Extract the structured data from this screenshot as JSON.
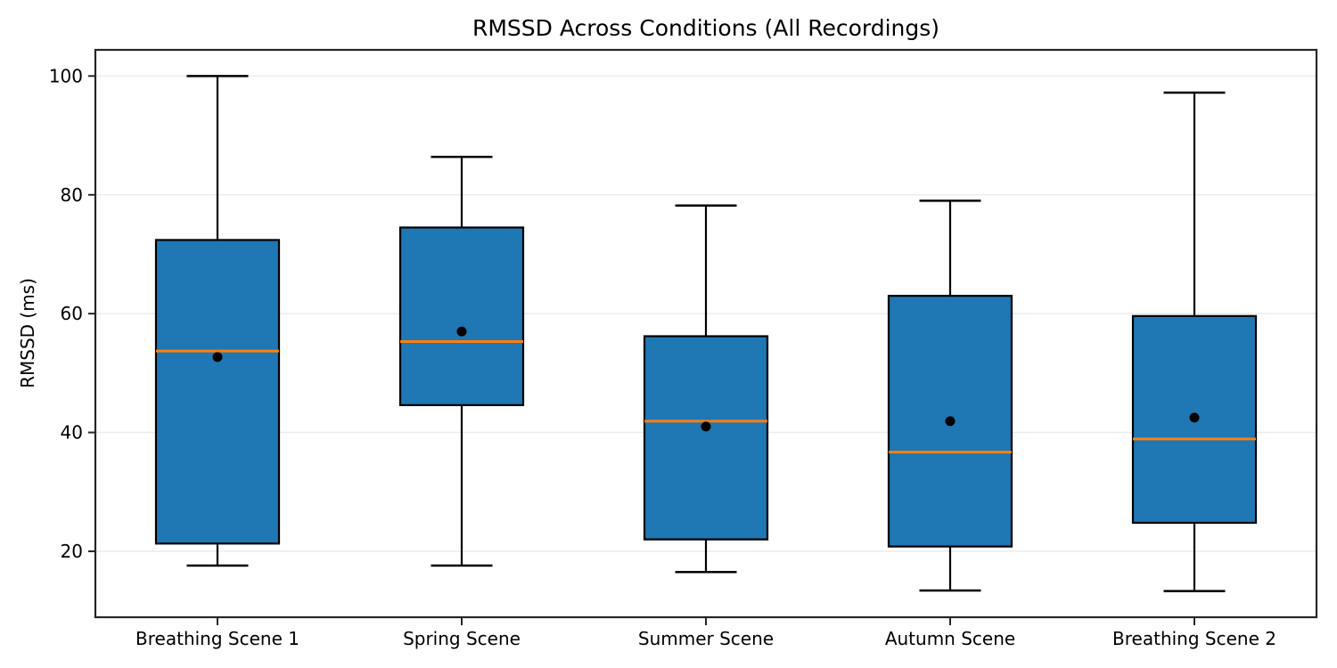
{
  "figure": {
    "title": "RMSSD Across Conditions (All Recordings)",
    "ylabel": "RMSSD (ms)"
  },
  "chart_data": {
    "type": "box",
    "title": "RMSSD Across Conditions (All Recordings)",
    "xlabel": "",
    "ylabel": "RMSSD (ms)",
    "categories": [
      "Breathing Scene 1",
      "Spring Scene",
      "Summer Scene",
      "Autumn Scene",
      "Breathing Scene 2"
    ],
    "series": [
      {
        "label": "Breathing Scene 1",
        "whisker_low": 17.6,
        "q1": 21.3,
        "median": 53.7,
        "q3": 72.4,
        "whisker_high": 100.0,
        "mean": 52.7
      },
      {
        "label": "Spring Scene",
        "whisker_low": 17.6,
        "q1": 44.6,
        "median": 55.3,
        "q3": 74.5,
        "whisker_high": 86.4,
        "mean": 57.0
      },
      {
        "label": "Summer Scene",
        "whisker_low": 16.5,
        "q1": 22.0,
        "median": 41.9,
        "q3": 56.2,
        "whisker_high": 78.2,
        "mean": 41.0
      },
      {
        "label": "Autumn Scene",
        "whisker_low": 13.4,
        "q1": 20.8,
        "median": 36.7,
        "q3": 63.0,
        "whisker_high": 79.0,
        "mean": 41.9
      },
      {
        "label": "Breathing Scene 2",
        "whisker_low": 13.3,
        "q1": 24.8,
        "median": 38.9,
        "q3": 59.6,
        "whisker_high": 97.2,
        "mean": 42.5
      }
    ],
    "yticks": [
      20,
      40,
      60,
      80,
      100
    ],
    "ylim": [
      8.9,
      104.4
    ],
    "grid": "horizontal",
    "legend": "none",
    "colors": {
      "box_fill": "#1f77b4",
      "box_edge": "#000000",
      "median": "#ff7f0e",
      "mean_marker": "#000000",
      "grid": "#ececec",
      "spine": "#262626",
      "text": "#000000",
      "background": "#ffffff"
    }
  }
}
